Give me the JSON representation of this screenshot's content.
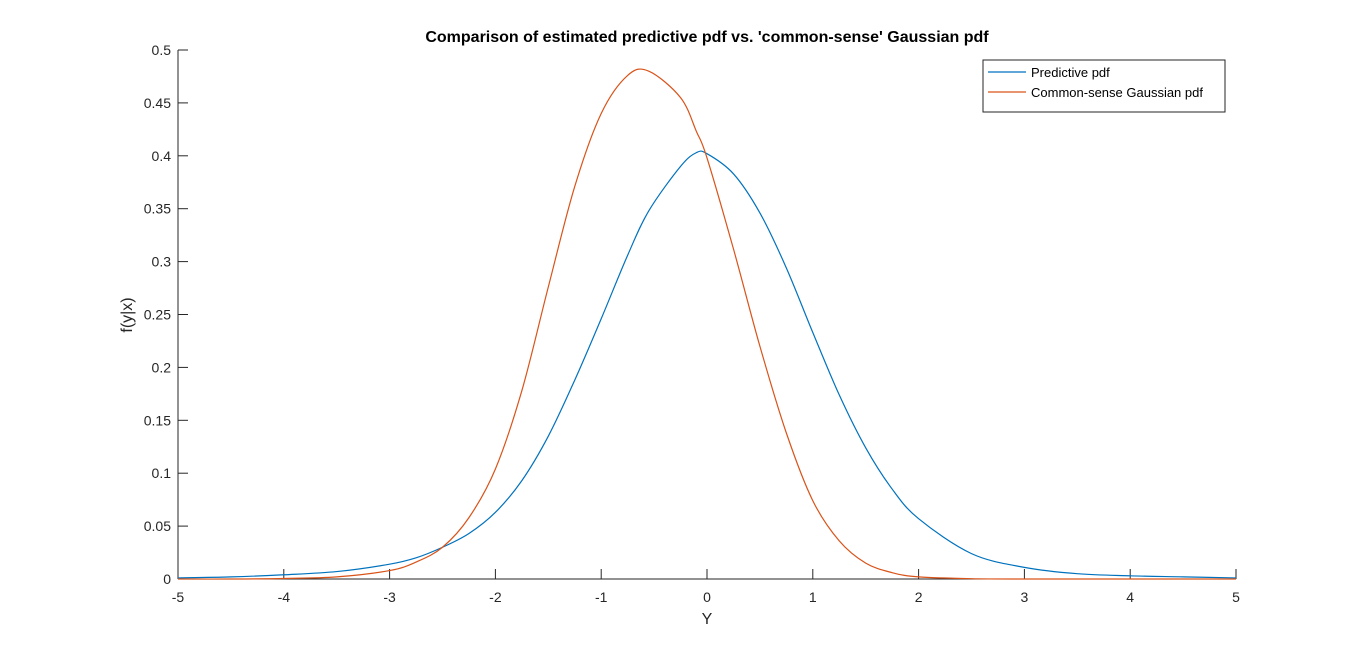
{
  "chart_data": {
    "type": "line",
    "title": "Comparison of estimated predictive pdf vs. 'common-sense' Gaussian pdf",
    "xlabel": "Y",
    "ylabel": "f(y|x)",
    "xlim": [
      -5,
      5
    ],
    "ylim": [
      0,
      0.5
    ],
    "x_ticks": [
      "-5",
      "-4",
      "-3",
      "-2",
      "-1",
      "0",
      "1",
      "2",
      "3",
      "4",
      "5"
    ],
    "y_ticks": [
      "0",
      "0.05",
      "0.1",
      "0.15",
      "0.2",
      "0.25",
      "0.3",
      "0.35",
      "0.4",
      "0.45",
      "0.5"
    ],
    "grid": false,
    "legend_position": "top-right",
    "x": [
      -5,
      -4.5,
      -4,
      -3.5,
      -3,
      -2.75,
      -2.5,
      -2.25,
      -2,
      -1.75,
      -1.5,
      -1.25,
      -1,
      -0.75,
      -0.55,
      -0.25,
      -0.1,
      0,
      0.25,
      0.5,
      0.75,
      1,
      1.25,
      1.5,
      1.75,
      2,
      2.5,
      3,
      3.5,
      4,
      4.5,
      5
    ],
    "series": [
      {
        "name": "Predictive pdf",
        "color": "#0072BD",
        "values": [
          0.001,
          0.002,
          0.004,
          0.007,
          0.014,
          0.02,
          0.03,
          0.043,
          0.063,
          0.093,
          0.135,
          0.188,
          0.246,
          0.306,
          0.348,
          0.39,
          0.403,
          0.402,
          0.383,
          0.346,
          0.294,
          0.233,
          0.174,
          0.124,
          0.085,
          0.057,
          0.024,
          0.011,
          0.005,
          0.003,
          0.002,
          0.001
        ]
      },
      {
        "name": "Common-sense Gaussian pdf",
        "color": "#D95319",
        "values": [
          0.0,
          0.0,
          0.0005,
          0.002,
          0.008,
          0.016,
          0.03,
          0.058,
          0.104,
          0.178,
          0.276,
          0.371,
          0.44,
          0.476,
          0.48,
          0.455,
          0.423,
          0.398,
          0.312,
          0.22,
          0.138,
          0.074,
          0.036,
          0.015,
          0.006,
          0.002,
          0.0003,
          0.0,
          0.0,
          0.0,
          0.0,
          0.0
        ]
      }
    ]
  }
}
